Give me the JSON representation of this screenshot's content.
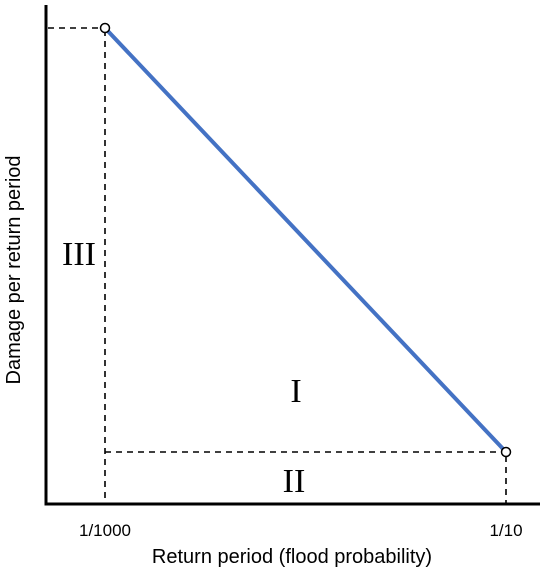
{
  "chart_data": {
    "type": "line",
    "xlabel": "Return period (flood probability)",
    "ylabel": "Damage per return period",
    "x_ticks": [
      "1/1000",
      "1/10"
    ],
    "series": [
      {
        "points": [
          {
            "x": "1/1000",
            "y": "high"
          },
          {
            "x": "1/10",
            "y": "low"
          }
        ]
      }
    ],
    "regions": [
      "I",
      "II",
      "III"
    ],
    "colors": {
      "line": "#4472c4",
      "axes": "#000000"
    }
  }
}
